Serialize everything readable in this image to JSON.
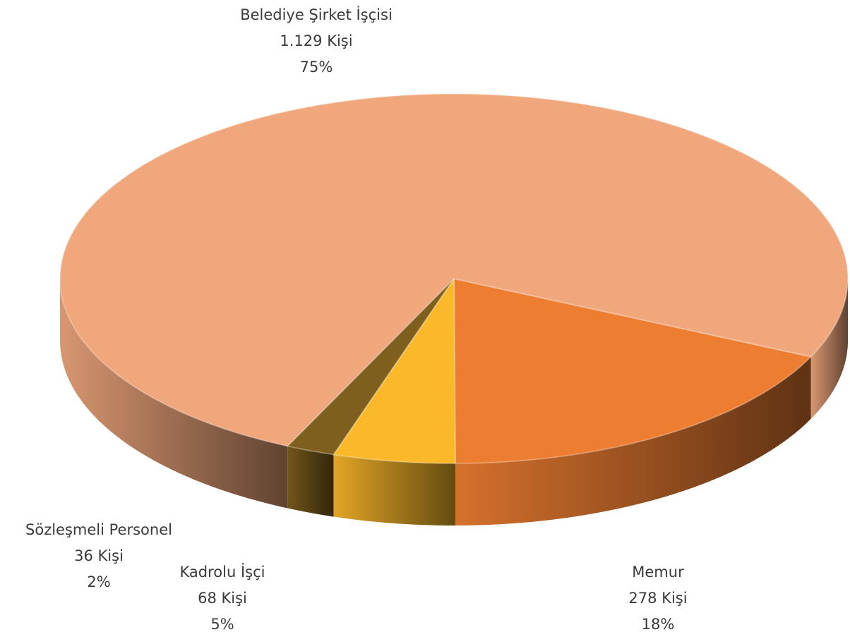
{
  "chart_data": {
    "type": "pie",
    "categories": [
      "Memur",
      "Kadrolu İşçi",
      "Sözleşmeli Personel",
      "Belediye Şirket İşçisi"
    ],
    "values": [
      18,
      5,
      2,
      75
    ],
    "value_labels": [
      "18%",
      "5%",
      "2%",
      "75%"
    ],
    "counts": [
      278,
      68,
      36,
      1129
    ],
    "count_labels": [
      "278 Kişi",
      "68 Kişi",
      "36 Kişi",
      "1.129 Kişi"
    ],
    "colors": [
      "#ed7d31",
      "#fbb829",
      "#7f5f1e",
      "#f0a77c"
    ]
  }
}
